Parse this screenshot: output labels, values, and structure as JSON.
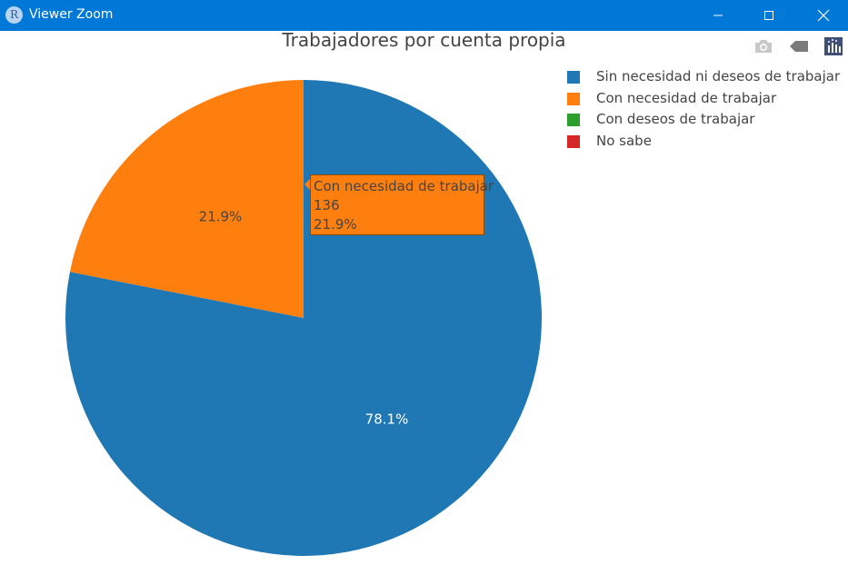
{
  "window": {
    "title": "Viewer Zoom",
    "app_icon_letter": "R"
  },
  "colors": {
    "titlebar": "#0078d7"
  },
  "modebar": {
    "icons": [
      "camera-icon",
      "tag-icon",
      "plotly-logo-icon"
    ]
  },
  "chart_data": {
    "type": "pie",
    "title": "Trabajadores por cuenta propia",
    "legend_placement": "top-right",
    "slices": [
      {
        "label": "Sin necesidad ni deseos de trabajar",
        "percent": 78.1,
        "percent_label": "78.1%",
        "color": "#1f77b4"
      },
      {
        "label": "Con necesidad de trabajar",
        "value": 136,
        "percent": 21.9,
        "percent_label": "21.9%",
        "color": "#ff7f0e"
      },
      {
        "label": "Con deseos de trabajar",
        "percent": 0,
        "color": "#2ca02c"
      },
      {
        "label": "No sabe",
        "percent": 0,
        "color": "#d62728"
      }
    ],
    "tooltip": {
      "label": "Con necesidad de trabajar",
      "value": "136",
      "percent": "21.9%"
    }
  }
}
